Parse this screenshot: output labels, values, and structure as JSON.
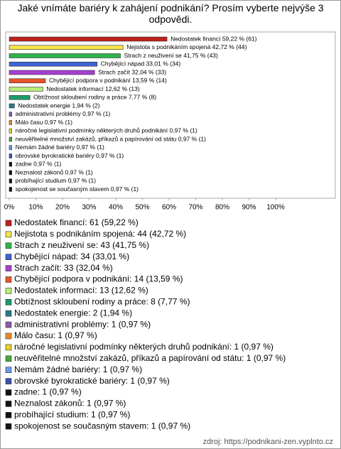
{
  "chart_data": {
    "type": "bar",
    "orientation": "horizontal",
    "title": "Jaké vnímáte bariéry k zahájení podnikání? Prosím vyberte nejvýše 3 odpovědi.",
    "values": [
      59.22,
      42.72,
      41.75,
      33.01,
      32.04,
      13.59,
      12.62,
      7.77,
      1.94,
      0.97,
      0.97,
      0.97,
      0.97,
      0.97,
      0.97,
      0.97,
      0.97,
      0.97,
      0.97
    ],
    "value_labels": [
      "Nedostatek financí 59,22 % (61)",
      "Nejistota s podnikáním spojená 42,72 % (44)",
      "Strach z neuživení se 41,75 % (43)",
      "Chybějící nápad 33,01 % (34)",
      "Strach začít 32,04 % (33)",
      "Chybějící podpora v podnikání 13,59 % (14)",
      "Nedostatek informací 12,62 % (13)",
      "Obtížnost skloubení rodiny a práce 7,77 % (8)",
      "Nedostatek energie 1,94 % (2)",
      "administrativní problémy 0,97 % (1)",
      "Málo času 0,97 % (1)",
      "náročné legislativní podmínky některých druhů podnikání 0,97 % (1)",
      "neuvěřitelné množství zakázů, příkazů a papírování od státu 0,97 % (1)",
      "Nemám žádné bariéry 0,97 % (1)",
      "obrovské byrokratické bariéry 0,97 % (1)",
      "zadne 0,97 % (1)",
      "Neznalost zákonů 0,97 % (1)",
      "probíhající studium 0,97 % (1)",
      "spokojenost se současným stavem 0,97 % (1)"
    ],
    "legend_labels": [
      "Nedostatek financí: 61 (59,22 %)",
      "Nejistota s podnikáním spojená: 44 (42,72 %)",
      "Strach z neuživení se: 43 (41,75 %)",
      "Chybějící nápad: 34 (33,01 %)",
      "Strach začít: 33 (32,04 %)",
      "Chybějící podpora v podnikání: 14 (13,59 %)",
      "Nedostatek informací: 13 (12,62 %)",
      "Obtížnost skloubení rodiny a práce: 8 (7,77 %)",
      "Nedostatek energie: 2 (1,94 %)",
      "administrativní problémy: 1 (0,97 %)",
      "Málo času: 1 (0,97 %)",
      "náročné legislativní podmínky některých druhů podnikání: 1 (0,97 %)",
      "neuvěřitelné množství zakázů, příkazů a papírování od státu: 1 (0,97 %)",
      "Nemám žádné bariéry: 1 (0,97 %)",
      "obrovské byrokratické bariéry: 1 (0,97 %)",
      "zadne: 1 (0,97 %)",
      "Neznalost zákonů: 1 (0,97 %)",
      "probíhající studium: 1 (0,97 %)",
      "spokojenost se současným stavem: 1 (0,97 %)"
    ],
    "colors": [
      "#c0201c",
      "#f2e44a",
      "#2fb34a",
      "#3f63d6",
      "#a63fd0",
      "#e8552a",
      "#b9ec7a",
      "#1f9a6a",
      "#237a8a",
      "#8a5aa8",
      "#e88a2a",
      "#e8d02a",
      "#4aa83a",
      "#6a9ae8",
      "#3a52b0",
      "#111111",
      "#111111",
      "#111111",
      "#111111"
    ],
    "xlim": [
      0,
      100
    ],
    "xticks": [
      {
        "value": 0,
        "label": "0%"
      },
      {
        "value": 10,
        "label": "10%"
      },
      {
        "value": 20,
        "label": "20%"
      },
      {
        "value": 30,
        "label": "30%"
      },
      {
        "value": 40,
        "label": "40%"
      },
      {
        "value": 50,
        "label": "50%"
      },
      {
        "value": 60,
        "label": "60%"
      },
      {
        "value": 70,
        "label": "70%"
      },
      {
        "value": 80,
        "label": "80%"
      },
      {
        "value": 90,
        "label": "90%"
      },
      {
        "value": 100,
        "label": "100%"
      }
    ],
    "source": "zdroj: https://podnikani-zen.vyplnto.cz"
  }
}
